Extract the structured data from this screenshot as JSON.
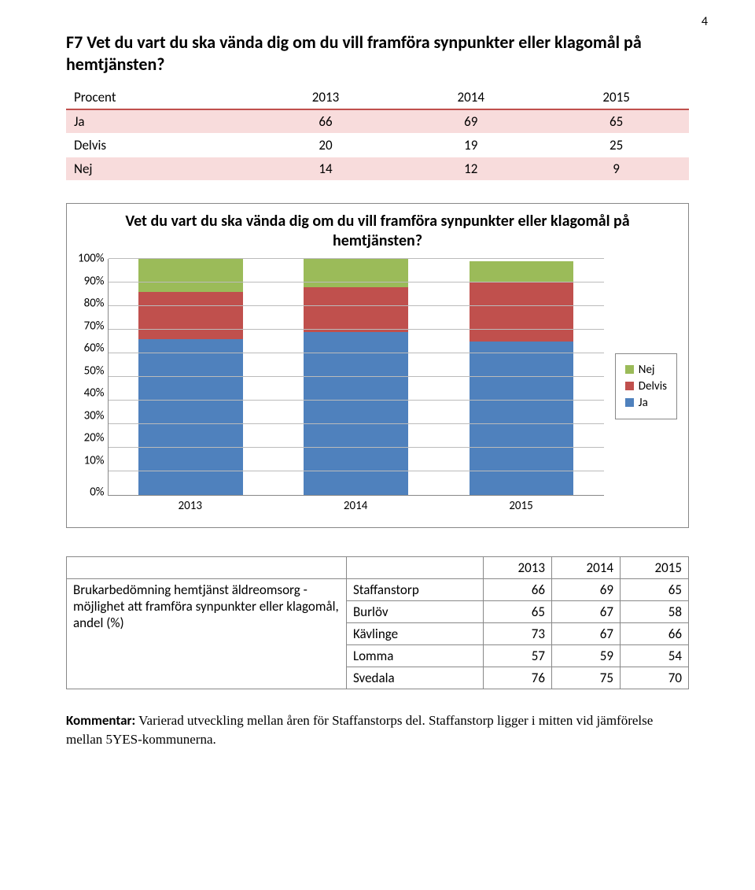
{
  "page_number": "4",
  "question": {
    "code": "F7",
    "text": "Vet du vart du ska vända dig om du vill framföra synpunkter eller klagomål på hemtjänsten?"
  },
  "table1": {
    "header_label": "Procent",
    "years": [
      "2013",
      "2014",
      "2015"
    ],
    "rows": [
      {
        "label": "Ja",
        "values": [
          "66",
          "69",
          "65"
        ],
        "band": true
      },
      {
        "label": "Delvis",
        "values": [
          "20",
          "19",
          "25"
        ],
        "band": false
      },
      {
        "label": "Nej",
        "values": [
          "14",
          "12",
          "9"
        ],
        "band": true
      }
    ],
    "header_border_color": "#c0504d",
    "band_background": "#f8dcdc"
  },
  "chart": {
    "type": "stacked-bar-100",
    "title": "Vet du vart du ska vända dig om du vill framföra synpunkter eller klagomål på hemtjänsten?",
    "categories": [
      "2013",
      "2014",
      "2015"
    ],
    "series": [
      {
        "name": "Ja",
        "color": "#4f81bd",
        "values": [
          66,
          69,
          65
        ]
      },
      {
        "name": "Delvis",
        "color": "#c0504d",
        "values": [
          20,
          19,
          25
        ]
      },
      {
        "name": "Nej",
        "color": "#9bbb59",
        "values": [
          14,
          12,
          9
        ]
      }
    ],
    "ylim": [
      0,
      100
    ],
    "ytick_step": 10,
    "ytick_suffix": "%",
    "grid_color": "#bbbbbb",
    "axis_color": "#888888",
    "background": "#ffffff",
    "title_fontsize": 20,
    "label_fontsize": 15,
    "legend_border": "#888888",
    "legend_order": [
      "Nej",
      "Delvis",
      "Ja"
    ]
  },
  "table2": {
    "heading1": "Brukarbedömning hemtjänst äldreomsorg - möjlighet att framföra synpunkter eller klagomål, andel (%)",
    "years": [
      "2013",
      "2014",
      "2015"
    ],
    "rows": [
      {
        "label": "Staffanstorp",
        "values": [
          "66",
          "69",
          "65"
        ]
      },
      {
        "label": "Burlöv",
        "values": [
          "65",
          "67",
          "58"
        ]
      },
      {
        "label": "Kävlinge",
        "values": [
          "73",
          "67",
          "66"
        ]
      },
      {
        "label": "Lomma",
        "values": [
          "57",
          "59",
          "54"
        ]
      },
      {
        "label": "Svedala",
        "values": [
          "76",
          "75",
          "70"
        ]
      }
    ]
  },
  "comment": {
    "lead": "Kommentar:",
    "body": " Varierad utveckling mellan åren för Staffanstorps del. Staffanstorp ligger i mitten vid jämförelse mellan 5YES-kommunerna."
  }
}
